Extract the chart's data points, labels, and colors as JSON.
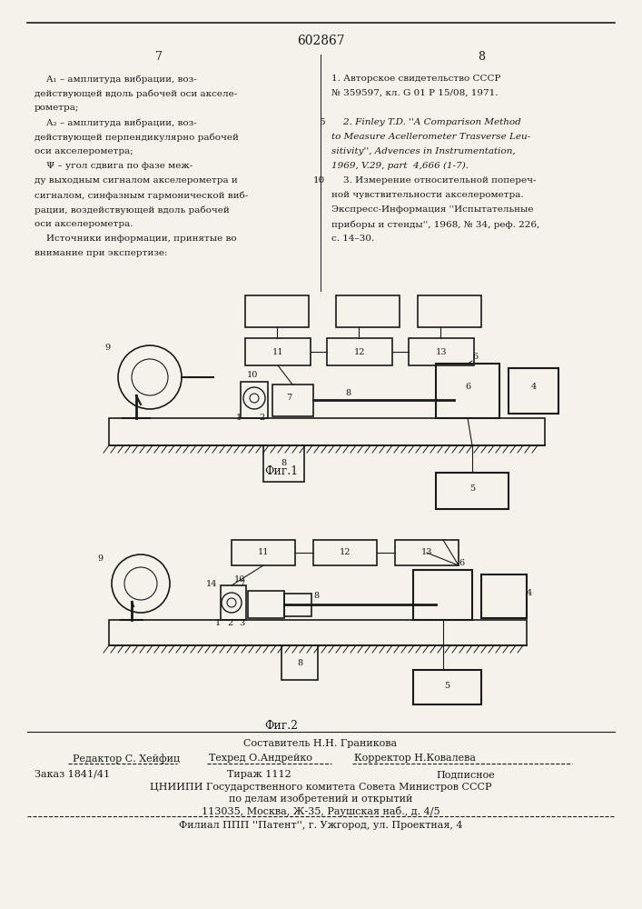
{
  "patent_number": "602867",
  "page_left": "7",
  "page_right": "8",
  "bg_color": "#f5f2ec",
  "text_color": "#1a1a1a",
  "left_column_text": [
    "    A₁ – амплитуда вибрации, воз-",
    "действующей вдоль рабочей оси акселе-",
    "рометра;",
    "    A₂ – амплитуда вибрации, воз-",
    "действующей перпендикулярно рабочей",
    "оси акселерометра;",
    "    Ψ – угол сдвига по фазе меж-",
    "ду выходным сигналом акселерометра и",
    "сигналом, синфазным гармонической виб-",
    "рации, воздействующей вдоль рабочей",
    "оси акселерометра.",
    "    Источники информации, принятые во",
    "внимание при экспертизе:"
  ],
  "right_column_text": [
    "1. Авторское свидетельство СССР",
    "№ 359597, кл. G 01 P 15/08, 1971.",
    "",
    "    2. Finley T.D. ''A Comparison Method",
    "to Measure Acellerometer Trasverse Leu-",
    "sitivity'', Advences in Instrumentation,",
    "1969, V.29, part  4,666 (1-7).",
    "    3. Измерение относительной попереч-",
    "ной чувствительности акселерометра.",
    "Экспресс-Информация ''Испытательные",
    "приборы и стенды'', 1968, № 34, реф. 226,",
    "с. 14–30."
  ],
  "line5_label": "5",
  "line10_label": "10",
  "fig1_label": "Фиг.1",
  "fig2_label": "Фиг.2",
  "footer_line1": "Составитель Н.Н. Граникова",
  "footer_editor": "Редактор С. Хейфиц",
  "footer_tech": "Техред О.Андрейко",
  "footer_corrector": "Корректор Н.Ковалева",
  "footer_order": "Заказ 1841/41",
  "footer_tirazh": "Тираж 1112",
  "footer_podpisnoe": "Подписное",
  "footer_org": "ЦНИИПИ Государственного комитета Совета Министров СССР",
  "footer_dept": "по делам изобретений и открытий",
  "footer_addr": "113035, Москва, Ж-35, Раушская наб., д. 4/5",
  "footer_branch": "Филиал ППП ''Патент'', г. Ужгород, ул. Проектная, 4"
}
